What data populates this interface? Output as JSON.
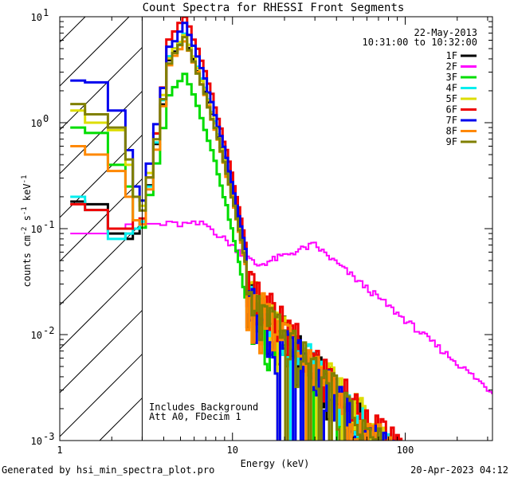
{
  "chart_data": {
    "type": "line",
    "title": "Count Spectra for RHESSI Front Segments",
    "xlabel": "Energy (keV)",
    "ylabel_parts": [
      "counts cm",
      "-2",
      " s",
      "-1",
      " keV",
      "-1"
    ],
    "xscale": "log",
    "yscale": "log",
    "xlim": [
      1,
      320
    ],
    "ylim": [
      0.001,
      10
    ],
    "x_ticks": [
      {
        "v": 1,
        "label": "1"
      },
      {
        "v": 10,
        "label": "10"
      },
      {
        "v": 100,
        "label": "100"
      }
    ],
    "y_ticks": [
      {
        "v": 0.001,
        "base": "10",
        "exp": "-3"
      },
      {
        "v": 0.01,
        "base": "10",
        "exp": "-2"
      },
      {
        "v": 0.1,
        "base": "10",
        "exp": "-1"
      },
      {
        "v": 1,
        "base": "10",
        "exp": "0"
      },
      {
        "v": 10,
        "base": "10",
        "exp": "1"
      }
    ],
    "date": "22-May-2013",
    "time_range": "10:31:00 to 10:32:00",
    "annotations": [
      "Includes Background",
      "Att A0, FDecim 1"
    ],
    "shaded_region": {
      "x_start": 1,
      "x_end": 3,
      "pattern": "diagonal hatch"
    },
    "vertical_line_x": 3,
    "series": [
      {
        "name": "1F",
        "color": "#000000",
        "low": [
          0.18,
          0.17,
          0.09,
          0.08,
          0.09,
          0.11
        ],
        "peak": 6.5,
        "tail_scale": 1.0,
        "phase": 1
      },
      {
        "name": "2F",
        "color": "#ff00ff",
        "low": [
          0.09,
          0.09,
          0.1,
          0.11,
          0.12,
          0.12
        ],
        "peak": null,
        "tail_scale": 1.0,
        "phase": 2
      },
      {
        "name": "3F",
        "color": "#00dd00",
        "low": [
          0.9,
          0.8,
          0.4,
          0.25,
          0.12,
          0.1
        ],
        "peak": 3.0,
        "tail_scale": 0.75,
        "phase": 3
      },
      {
        "name": "4F",
        "color": "#00eeee",
        "low": [
          0.2,
          0.15,
          0.08,
          0.09,
          0.1,
          0.11
        ],
        "peak": 7.0,
        "tail_scale": 1.05,
        "phase": 4
      },
      {
        "name": "5F",
        "color": "#dddd00",
        "low": [
          1.3,
          1.0,
          0.85,
          0.4,
          0.2,
          0.15
        ],
        "peak": 6.8,
        "tail_scale": 1.1,
        "phase": 5
      },
      {
        "name": "6F",
        "color": "#ee0000",
        "low": [
          0.17,
          0.15,
          0.1,
          0.1,
          0.12,
          0.12
        ],
        "peak": 10.0,
        "tail_scale": 1.2,
        "phase": 6
      },
      {
        "name": "7F",
        "color": "#0000ee",
        "low": [
          2.5,
          2.4,
          1.3,
          0.55,
          0.25,
          0.18
        ],
        "peak": 8.5,
        "tail_scale": 0.9,
        "phase": 7
      },
      {
        "name": "8F",
        "color": "#ff8800",
        "low": [
          0.6,
          0.5,
          0.35,
          0.2,
          0.12,
          0.1
        ],
        "peak": 6.0,
        "tail_scale": 1.0,
        "phase": 8
      },
      {
        "name": "9F",
        "color": "#808000",
        "low": [
          1.5,
          1.2,
          0.9,
          0.45,
          0.2,
          0.14
        ],
        "peak": 6.2,
        "tail_scale": 0.95,
        "phase": 9
      }
    ]
  },
  "footer": {
    "left": "Generated by hsi_min_spectra_plot.pro",
    "right": "20-Apr-2023 04:12"
  }
}
